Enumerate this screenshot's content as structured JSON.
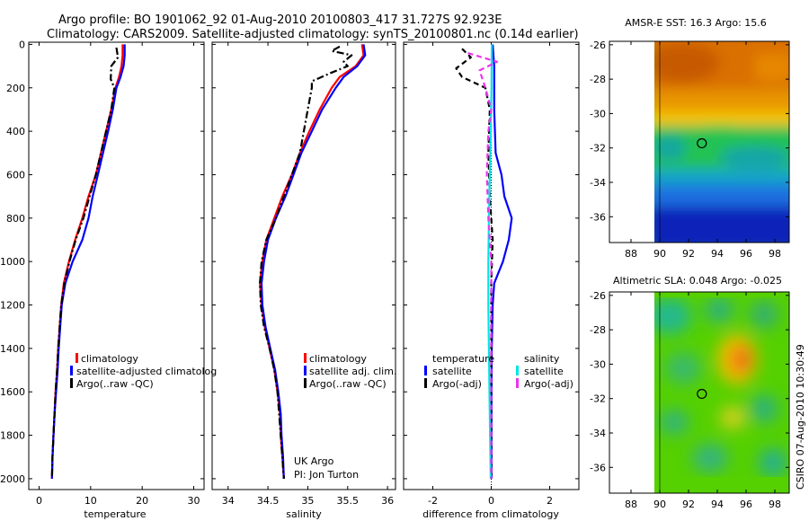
{
  "header": {
    "line1": "Argo profile: BO 1901062_92 01-Aug-2010 20100803_417 31.727S 92.923E",
    "line2": "Climatology: CARS2009. Satellite-adjusted climatology: synTS_20100801.nc (0.14d earlier)"
  },
  "colors": {
    "climatology": "#ff0000",
    "satellite": "#0000ff",
    "argo": "#000000",
    "satellite_salinity": "#00e5e5",
    "argo_salinity": "#ee33ee"
  },
  "credits": {
    "line1": "UK Argo",
    "line2": "PI: Jon Turton"
  },
  "stamp": "CSIRO 07-Aug-2010 10:30:49",
  "chart_data": [
    {
      "id": "temperature",
      "type": "line",
      "xlabel": "temperature",
      "ylabel": "",
      "xlim": [
        -2,
        32
      ],
      "ylim": [
        2050,
        -10
      ],
      "xticks": [
        "0",
        "10",
        "20",
        "30"
      ],
      "yticks": [
        "0",
        "200",
        "400",
        "600",
        "800",
        "1000",
        "1200",
        "1400",
        "1600",
        "1800",
        "2000"
      ],
      "legend": [
        "climatology",
        "satellite-adjusted climatolog",
        "Argo(..raw -QC)"
      ],
      "series": [
        {
          "name": "climatology",
          "color": "climatology",
          "dash": "solid",
          "points": [
            [
              16.2,
              0
            ],
            [
              16.2,
              50
            ],
            [
              16.0,
              100
            ],
            [
              15.5,
              150
            ],
            [
              14.8,
              200
            ],
            [
              14.0,
              300
            ],
            [
              13.0,
              400
            ],
            [
              12.0,
              500
            ],
            [
              11.0,
              600
            ],
            [
              9.6,
              700
            ],
            [
              8.4,
              800
            ],
            [
              7.0,
              900
            ],
            [
              5.8,
              1000
            ],
            [
              4.8,
              1100
            ],
            [
              4.3,
              1200
            ],
            [
              4.0,
              1300
            ],
            [
              3.7,
              1400
            ],
            [
              3.5,
              1500
            ],
            [
              3.2,
              1600
            ],
            [
              3.0,
              1700
            ],
            [
              2.8,
              1800
            ],
            [
              2.6,
              1900
            ],
            [
              2.5,
              2000
            ]
          ]
        },
        {
          "name": "satellite",
          "color": "satellite",
          "dash": "solid",
          "points": [
            [
              16.6,
              0
            ],
            [
              16.6,
              50
            ],
            [
              16.4,
              100
            ],
            [
              15.8,
              150
            ],
            [
              15.0,
              200
            ],
            [
              14.3,
              300
            ],
            [
              13.4,
              400
            ],
            [
              12.4,
              500
            ],
            [
              11.4,
              600
            ],
            [
              10.4,
              700
            ],
            [
              9.6,
              800
            ],
            [
              8.4,
              900
            ],
            [
              6.5,
              1000
            ],
            [
              5.1,
              1100
            ],
            [
              4.4,
              1200
            ],
            [
              4.1,
              1300
            ],
            [
              3.8,
              1400
            ],
            [
              3.6,
              1500
            ],
            [
              3.3,
              1600
            ],
            [
              3.0,
              1700
            ],
            [
              2.8,
              1800
            ],
            [
              2.6,
              1900
            ],
            [
              2.5,
              2000
            ]
          ]
        },
        {
          "name": "argo",
          "color": "argo",
          "dash": "dashdot",
          "points": [
            [
              15.0,
              15
            ],
            [
              15.3,
              60
            ],
            [
              14.0,
              100
            ],
            [
              13.9,
              160
            ],
            [
              14.6,
              200
            ],
            [
              14.0,
              300
            ],
            [
              13.0,
              400
            ],
            [
              12.0,
              500
            ],
            [
              11.0,
              600
            ],
            [
              9.8,
              700
            ],
            [
              8.6,
              800
            ],
            [
              7.1,
              900
            ],
            [
              5.9,
              1000
            ],
            [
              4.9,
              1100
            ],
            [
              4.3,
              1200
            ],
            [
              4.0,
              1300
            ],
            [
              3.7,
              1400
            ],
            [
              3.5,
              1500
            ],
            [
              3.2,
              1600
            ],
            [
              3.0,
              1700
            ],
            [
              2.8,
              1800
            ],
            [
              2.6,
              1900
            ],
            [
              2.5,
              2000
            ]
          ]
        }
      ]
    },
    {
      "id": "salinity",
      "type": "line",
      "xlabel": "salinity",
      "ylabel": "",
      "xlim": [
        33.8,
        36.1
      ],
      "ylim": [
        2050,
        -10
      ],
      "xticks": [
        "34",
        "34.5",
        "35",
        "35.5",
        "36"
      ],
      "yticks": [],
      "legend": [
        "climatology",
        "satellite adj. clim.",
        "Argo(..raw -QC)"
      ],
      "series": [
        {
          "name": "climatology",
          "color": "climatology",
          "dash": "solid",
          "points": [
            [
              35.68,
              0
            ],
            [
              35.7,
              50
            ],
            [
              35.6,
              100
            ],
            [
              35.4,
              150
            ],
            [
              35.3,
              200
            ],
            [
              35.15,
              300
            ],
            [
              35.02,
              400
            ],
            [
              34.9,
              500
            ],
            [
              34.8,
              600
            ],
            [
              34.68,
              700
            ],
            [
              34.58,
              800
            ],
            [
              34.48,
              900
            ],
            [
              34.43,
              1000
            ],
            [
              34.4,
              1100
            ],
            [
              34.42,
              1200
            ],
            [
              34.46,
              1300
            ],
            [
              34.52,
              1400
            ],
            [
              34.58,
              1500
            ],
            [
              34.62,
              1600
            ],
            [
              34.65,
              1700
            ],
            [
              34.66,
              1800
            ],
            [
              34.68,
              1900
            ],
            [
              34.7,
              2000
            ]
          ]
        },
        {
          "name": "satellite",
          "color": "satellite",
          "dash": "solid",
          "points": [
            [
              35.7,
              0
            ],
            [
              35.72,
              50
            ],
            [
              35.62,
              100
            ],
            [
              35.45,
              150
            ],
            [
              35.35,
              200
            ],
            [
              35.18,
              300
            ],
            [
              35.05,
              400
            ],
            [
              34.92,
              500
            ],
            [
              34.82,
              600
            ],
            [
              34.72,
              700
            ],
            [
              34.6,
              800
            ],
            [
              34.5,
              900
            ],
            [
              34.45,
              1000
            ],
            [
              34.42,
              1100
            ],
            [
              34.43,
              1200
            ],
            [
              34.47,
              1300
            ],
            [
              34.53,
              1400
            ],
            [
              34.59,
              1500
            ],
            [
              34.63,
              1600
            ],
            [
              34.66,
              1700
            ],
            [
              34.67,
              1800
            ],
            [
              34.69,
              1900
            ],
            [
              34.7,
              2000
            ]
          ]
        },
        {
          "name": "argo",
          "color": "argo",
          "dash": "dashdot",
          "points": [
            [
              35.4,
              10
            ],
            [
              35.3,
              30
            ],
            [
              35.55,
              50
            ],
            [
              35.45,
              80
            ],
            [
              35.5,
              100
            ],
            [
              35.3,
              130
            ],
            [
              35.05,
              170
            ],
            [
              35.05,
              200
            ],
            [
              35.0,
              300
            ],
            [
              34.95,
              400
            ],
            [
              34.9,
              500
            ],
            [
              34.8,
              600
            ],
            [
              34.7,
              700
            ],
            [
              34.6,
              800
            ],
            [
              34.48,
              900
            ],
            [
              34.42,
              1000
            ],
            [
              34.4,
              1100
            ],
            [
              34.41,
              1200
            ],
            [
              34.45,
              1300
            ],
            [
              34.52,
              1400
            ],
            [
              34.58,
              1500
            ],
            [
              34.62,
              1600
            ],
            [
              34.64,
              1700
            ],
            [
              34.66,
              1800
            ],
            [
              34.68,
              1900
            ],
            [
              34.7,
              2000
            ]
          ]
        }
      ]
    },
    {
      "id": "difference",
      "type": "line",
      "xlabel": "difference from climatology",
      "ylabel": "",
      "xlim": [
        -3,
        3
      ],
      "ylim": [
        2050,
        -10
      ],
      "xticks": [
        "-2",
        "0",
        "2"
      ],
      "yticks": [],
      "legend_groups": [
        {
          "title": "temperature",
          "items": [
            "satellite",
            "Argo(-adj)"
          ]
        },
        {
          "title": "salinity",
          "items": [
            "satellite",
            "Argo(-adj)"
          ]
        }
      ],
      "series": [
        {
          "name": "temperature satellite",
          "color": "satellite",
          "dash": "solid",
          "points": [
            [
              0.05,
              0
            ],
            [
              0.1,
              100
            ],
            [
              0.1,
              300
            ],
            [
              0.15,
              500
            ],
            [
              0.35,
              600
            ],
            [
              0.45,
              700
            ],
            [
              0.7,
              800
            ],
            [
              0.6,
              900
            ],
            [
              0.4,
              1000
            ],
            [
              0.1,
              1100
            ],
            [
              0.05,
              1200
            ],
            [
              0.02,
              1400
            ],
            [
              0.01,
              1600
            ],
            [
              0.01,
              1800
            ],
            [
              0.01,
              2000
            ]
          ]
        },
        {
          "name": "temperature Argo(-adj)",
          "color": "argo",
          "dash": "dashed",
          "points": [
            [
              -1.0,
              20
            ],
            [
              -0.7,
              60
            ],
            [
              -1.2,
              110
            ],
            [
              -1.0,
              150
            ],
            [
              -0.2,
              200
            ],
            [
              -0.05,
              300
            ],
            [
              -0.1,
              500
            ],
            [
              -0.05,
              700
            ],
            [
              0.05,
              900
            ],
            [
              0.0,
              1100
            ],
            [
              0.0,
              1400
            ],
            [
              0.0,
              1700
            ],
            [
              0.0,
              2000
            ]
          ]
        },
        {
          "name": "salinity satellite",
          "color": "satellite_salinity",
          "dash": "solid",
          "points": [
            [
              0.02,
              0
            ],
            [
              0.01,
              200
            ],
            [
              -0.02,
              400
            ],
            [
              -0.05,
              600
            ],
            [
              -0.08,
              800
            ],
            [
              -0.1,
              1000
            ],
            [
              -0.1,
              1200
            ],
            [
              -0.08,
              1400
            ],
            [
              -0.06,
              1600
            ],
            [
              -0.04,
              1800
            ],
            [
              -0.02,
              2000
            ]
          ]
        },
        {
          "name": "salinity Argo(-adj)",
          "color": "argo_salinity",
          "dash": "dashed",
          "points": [
            [
              -0.8,
              40
            ],
            [
              0.2,
              80
            ],
            [
              -0.4,
              120
            ],
            [
              -0.2,
              200
            ],
            [
              0.0,
              300
            ],
            [
              -0.1,
              400
            ],
            [
              -0.15,
              600
            ],
            [
              -0.1,
              800
            ],
            [
              0.0,
              1000
            ],
            [
              0.0,
              1300
            ],
            [
              0.0,
              1600
            ],
            [
              0.0,
              2000
            ]
          ]
        }
      ]
    },
    {
      "id": "sst_map",
      "type": "heatmap",
      "title": "AMSR-E SST: 16.3 Argo: 15.6",
      "xlim": [
        86.5,
        99
      ],
      "ylim": [
        -37.5,
        -25.8
      ],
      "data_xlim": [
        90,
        99
      ],
      "xticks": [
        "88",
        "90",
        "92",
        "94",
        "96",
        "98"
      ],
      "yticks": [
        "-26",
        "-28",
        "-30",
        "-32",
        "-34",
        "-36"
      ],
      "marker": {
        "lon": 92.923,
        "lat": -31.727
      }
    },
    {
      "id": "sla_map",
      "type": "heatmap",
      "title": "Altimetric SLA: 0.048 Argo: -0.025",
      "xlim": [
        86.5,
        99
      ],
      "ylim": [
        -37.5,
        -25.8
      ],
      "data_xlim": [
        90,
        99
      ],
      "xticks": [
        "88",
        "90",
        "92",
        "94",
        "96",
        "98"
      ],
      "yticks": [
        "-26",
        "-28",
        "-30",
        "-32",
        "-34",
        "-36"
      ],
      "marker": {
        "lon": 92.923,
        "lat": -31.727
      }
    }
  ]
}
